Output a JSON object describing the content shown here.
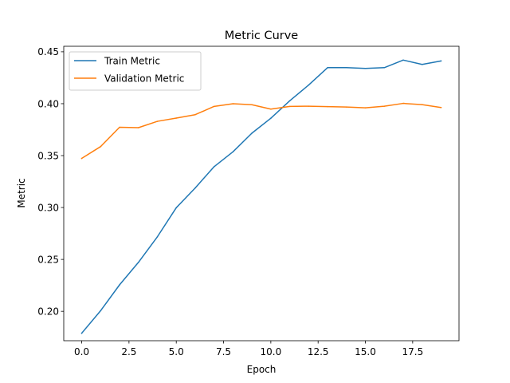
{
  "chart_data": {
    "type": "line",
    "title": "Metric Curve",
    "xlabel": "Epoch",
    "ylabel": "Metric",
    "xlim": [
      -0.95,
      19.95
    ],
    "ylim": [
      0.1717,
      0.4553
    ],
    "xticks": [
      0.0,
      2.5,
      5.0,
      7.5,
      10.0,
      12.5,
      15.0,
      17.5
    ],
    "xtick_labels": [
      "0.0",
      "2.5",
      "5.0",
      "7.5",
      "10.0",
      "12.5",
      "15.0",
      "17.5"
    ],
    "yticks": [
      0.2,
      0.25,
      0.3,
      0.35,
      0.4,
      0.45
    ],
    "ytick_labels": [
      "0.20",
      "0.25",
      "0.30",
      "0.35",
      "0.40",
      "0.45"
    ],
    "grid": false,
    "legend_position": "upper-left",
    "x": [
      0,
      1,
      2,
      3,
      4,
      5,
      6,
      7,
      8,
      9,
      10,
      11,
      12,
      13,
      14,
      15,
      16,
      17,
      18,
      19
    ],
    "series": [
      {
        "name": "Train Metric",
        "color": "#1f77b4",
        "values": [
          0.1789,
          0.2006,
          0.2255,
          0.2472,
          0.2718,
          0.2998,
          0.3188,
          0.3393,
          0.3537,
          0.3716,
          0.386,
          0.4028,
          0.418,
          0.4347,
          0.4347,
          0.434,
          0.4347,
          0.442,
          0.4378,
          0.4412
        ]
      },
      {
        "name": "Validation Metric",
        "color": "#ff7f0e",
        "values": [
          0.3473,
          0.3587,
          0.3773,
          0.3769,
          0.383,
          0.3861,
          0.3894,
          0.3974,
          0.4,
          0.399,
          0.3948,
          0.3974,
          0.3976,
          0.3972,
          0.3968,
          0.396,
          0.3976,
          0.4003,
          0.3991,
          0.3963
        ]
      }
    ]
  }
}
